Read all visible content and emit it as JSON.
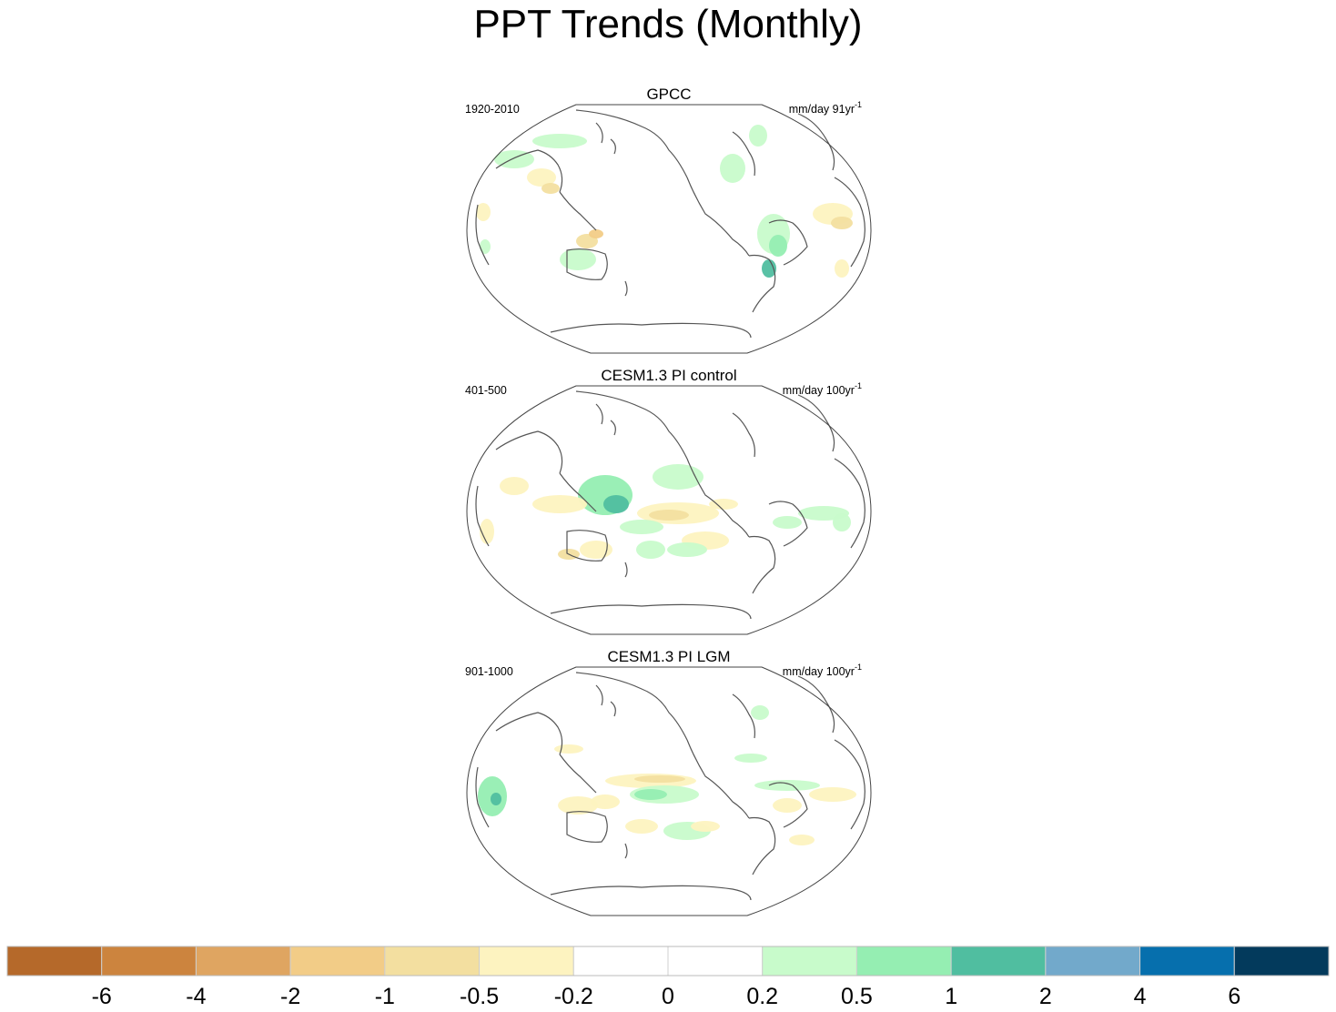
{
  "chart_data": {
    "type": "heatmap",
    "title": "PPT Trends (Monthly)",
    "panels": [
      {
        "title": "GPCC",
        "period": "1920-2010",
        "units": "mm/day 91yr",
        "units_exponent": "-1"
      },
      {
        "title": "CESM1.3 PI control",
        "period": "401-500",
        "units": "mm/day 100yr",
        "units_exponent": "-1"
      },
      {
        "title": "CESM1.3 PI LGM",
        "period": "901-1000",
        "units": "mm/day 100yr",
        "units_exponent": "-1"
      }
    ],
    "colorbar": {
      "tick_labels": [
        "-6",
        "-4",
        "-2",
        "-1",
        "-0.5",
        "-0.2",
        "0",
        "0.2",
        "0.5",
        "1",
        "2",
        "4",
        "6"
      ],
      "colors": [
        "#b5692a",
        "#cc843e",
        "#dfa561",
        "#f2cc87",
        "#f3dfa0",
        "#fdf3c0",
        "#ffffff",
        "#ffffff",
        "#c8fbcb",
        "#95eeb2",
        "#50bea0",
        "#72a9cb",
        "#066fad",
        "#033a5c"
      ]
    }
  }
}
